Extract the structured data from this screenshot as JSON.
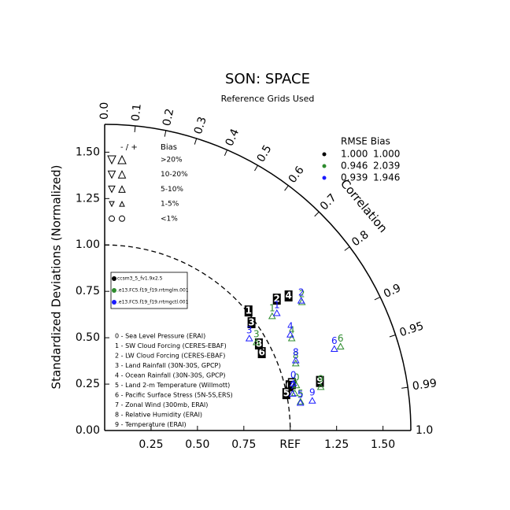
{
  "chart_data": {
    "type": "taylor",
    "title": "SON: SPACE",
    "subtitle": "Reference Grids Used",
    "ylabel": "Standardized Deviations (Normalized)",
    "corr_label": "Correlation",
    "rlim": [
      0,
      1.65
    ],
    "ref": 1,
    "yticks": [
      {
        "value": 0,
        "label": "0.00"
      },
      {
        "value": 0.25,
        "label": "0.25"
      },
      {
        "value": 0.5,
        "label": "0.50"
      },
      {
        "value": 0.75,
        "label": "0.75"
      },
      {
        "value": 1,
        "label": "1.00"
      },
      {
        "value": 1.25,
        "label": "1.25"
      },
      {
        "value": 1.5,
        "label": "1.50"
      }
    ],
    "xticks": [
      {
        "value": 0.25,
        "label": "0.25"
      },
      {
        "value": 0.5,
        "label": "0.50"
      },
      {
        "value": 0.75,
        "label": "0.75"
      },
      {
        "value": 1,
        "label": "REF"
      },
      {
        "value": 1.25,
        "label": "1.25"
      },
      {
        "value": 1.5,
        "label": "1.50"
      }
    ],
    "corrticks": [
      {
        "value": 0,
        "label": "0.0"
      },
      0.1,
      0.2,
      0.3,
      0.4,
      0.5,
      0.6,
      0.7,
      0.8,
      0.9,
      0.95,
      0.99,
      {
        "value": 1,
        "label": "1.0"
      }
    ],
    "bias_legend": {
      "sign": "- / +",
      "title": "Bias",
      "levels": [
        ">20%",
        "10-20%",
        "5-10%",
        "1-5%",
        "<1%"
      ]
    },
    "stats_header": "RMSE Bias",
    "variables": [
      {
        "id": "0",
        "label": "0 - Sea Level Pressure (ERAI)"
      },
      {
        "id": "1",
        "label": "1 - SW Cloud Forcing (CERES-EBAF)"
      },
      {
        "id": "2",
        "label": "2 - LW Cloud Forcing (CERES-EBAF)"
      },
      {
        "id": "3",
        "label": "3 - Land Rainfall (30N-30S, GPCP)"
      },
      {
        "id": "4",
        "label": "4 - Ocean Rainfall (30N-30S, GPCP)"
      },
      {
        "id": "5",
        "label": "5 - Land 2-m Temperature (Willmott)"
      },
      {
        "id": "6",
        "label": "6 - Pacific Surface Stress (5N-5S,ERS)"
      },
      {
        "id": "7",
        "label": "7 - Zonal Wind (300mb, ERAI)"
      },
      {
        "id": "8",
        "label": "8 - Relative Humidity (ERAI)"
      },
      {
        "id": "9",
        "label": "9 - Temperature (ERAI)"
      }
    ],
    "series": [
      {
        "name": "ccsm3_5_fv1.9x2.5",
        "color": "#000000",
        "rmse": "1.000",
        "bias": "1.000",
        "std": [
          1.025,
          1.008,
          1.167,
          0.982,
          1.228,
          0.999,
          0.945,
          1.04,
          0.953,
          1.19
        ],
        "corr": [
          0.972,
          0.769,
          0.795,
          0.806,
          0.807,
          0.98,
          0.896,
          0.97,
          0.872,
          0.975
        ]
      },
      {
        "name": ".e13.FC5.f19_f19.rrtmglm.001",
        "color": "#2e8b2e",
        "rmse": "0.946",
        "bias": "2.039",
        "std": [
          1.072,
          1.117,
          1.292,
          0.968,
          1.143,
          1.074,
          1.364,
          1.053,
          1.106,
          1.197
        ],
        "corr": [
          0.964,
          0.808,
          0.823,
          0.845,
          0.882,
          0.983,
          0.932,
          0.973,
          0.931,
          0.973
        ]
      },
      {
        "name": ".e13.FC5.f19_f19.rrtmgctl.001",
        "color": "#1a1aff",
        "rmse": "0.939",
        "bias": "1.946",
        "std": [
          1.059,
          1.147,
          1.293,
          0.947,
          1.146,
          1.072,
          1.328,
          1.041,
          1.112,
          1.137
        ],
        "corr": [
          0.96,
          0.809,
          0.819,
          0.823,
          0.873,
          0.984,
          0.932,
          0.973,
          0.926,
          0.984
        ]
      }
    ]
  }
}
